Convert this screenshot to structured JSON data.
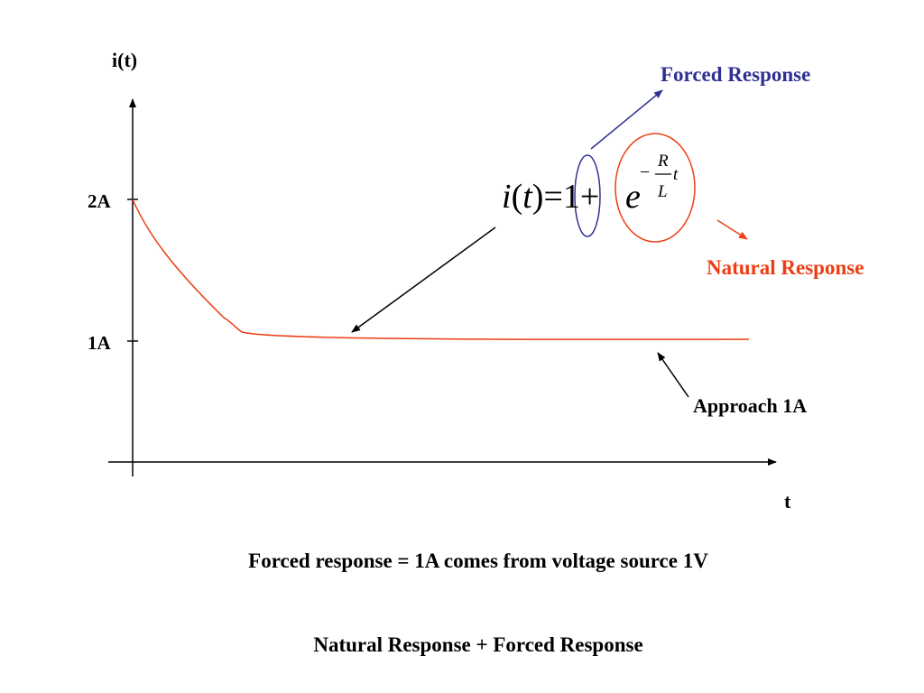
{
  "axes": {
    "y_label": "i(t)",
    "x_label": "t",
    "ticks": [
      {
        "label": "2A",
        "value": 2
      },
      {
        "label": "1A",
        "value": 1
      }
    ]
  },
  "equation": {
    "lhs_i": "i",
    "lhs_open": "(",
    "lhs_t": "t",
    "lhs_close": ")",
    "equals": "=",
    "one": "1",
    "plus": "+",
    "base": "e",
    "exp_minus": "−",
    "exp_num": "R",
    "exp_den": "L",
    "exp_t": "t"
  },
  "annotations": {
    "forced_response": "Forced Response",
    "natural_response": "Natural Response",
    "approach": "Approach 1A"
  },
  "captions": {
    "line1": "Forced response = 1A comes from voltage source 1V",
    "line2": "Natural Response + Forced Response"
  },
  "colors": {
    "forced": "#2e3192",
    "natural": "#ee3d13",
    "curve": "#ee3d13",
    "axis": "#000000"
  }
}
